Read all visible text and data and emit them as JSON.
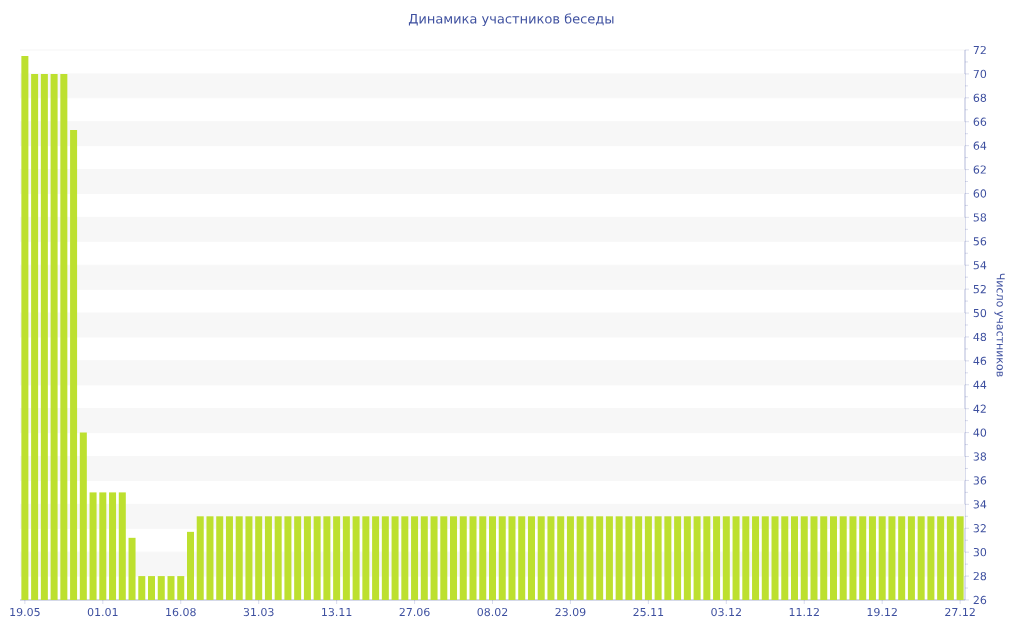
{
  "chart_data": {
    "type": "bar",
    "title": "Динамика участников беседы",
    "ylabel": "Число участников",
    "categories": [
      "19.05",
      null,
      null,
      null,
      null,
      null,
      null,
      null,
      "01.01",
      null,
      null,
      null,
      null,
      null,
      null,
      null,
      "16.08",
      null,
      null,
      null,
      null,
      null,
      null,
      null,
      "31.03",
      null,
      null,
      null,
      null,
      null,
      null,
      null,
      "13.11",
      null,
      null,
      null,
      null,
      null,
      null,
      null,
      "27.06",
      null,
      null,
      null,
      null,
      null,
      null,
      null,
      "08.02",
      null,
      null,
      null,
      null,
      null,
      null,
      null,
      "23.09",
      null,
      null,
      null,
      null,
      null,
      null,
      null,
      "25.11",
      null,
      null,
      null,
      null,
      null,
      null,
      null,
      "03.12",
      null,
      null,
      null,
      null,
      null,
      null,
      null,
      "11.12",
      null,
      null,
      null,
      null,
      null,
      null,
      null,
      "19.12",
      null,
      null,
      null,
      null,
      null,
      null,
      null,
      "27.12"
    ],
    "values": [
      71.5,
      70,
      70,
      70,
      70,
      65.3,
      40,
      35,
      35,
      35,
      35,
      31.2,
      28,
      28,
      28,
      28,
      28,
      31.7,
      33,
      33,
      33,
      33,
      33,
      33,
      33,
      33,
      33,
      33,
      33,
      33,
      33,
      33,
      33,
      33,
      33,
      33,
      33,
      33,
      33,
      33,
      33,
      33,
      33,
      33,
      33,
      33,
      33,
      33,
      33,
      33,
      33,
      33,
      33,
      33,
      33,
      33,
      33,
      33,
      33,
      33,
      33,
      33,
      33,
      33,
      33,
      33,
      33,
      33,
      33,
      33,
      33,
      33,
      33,
      33,
      33,
      33,
      33,
      33,
      33,
      33,
      33,
      33,
      33,
      33,
      33,
      33,
      33,
      33,
      33,
      33,
      33,
      33,
      33,
      33,
      33,
      33,
      33
    ],
    "color": "#bde02f",
    "ylim": [
      26,
      72
    ],
    "yticks": [
      26,
      28,
      30,
      32,
      34,
      36,
      38,
      40,
      42,
      44,
      46,
      48,
      50,
      52,
      54,
      56,
      58,
      60,
      62,
      64,
      66,
      68,
      70,
      72
    ],
    "grid": "y"
  }
}
